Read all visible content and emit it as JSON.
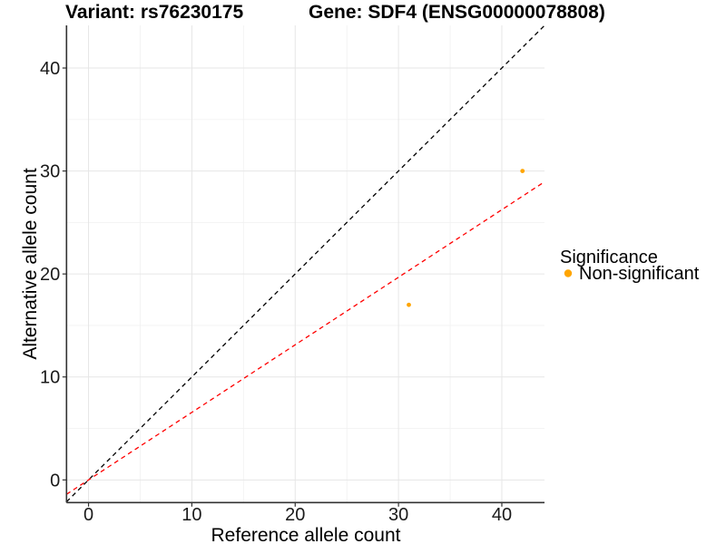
{
  "chart_data": {
    "type": "scatter",
    "titles": {
      "variant": "Variant: rs76230175",
      "gene": "Gene: SDF4 (ENSG00000078808)"
    },
    "xlabel": "Reference allele count",
    "ylabel": "Alternative allele count",
    "xlim": [
      -2.13,
      44.13
    ],
    "ylim": [
      -2.2,
      44.14
    ],
    "x_ticks": [
      0,
      10,
      20,
      30,
      40
    ],
    "y_ticks": [
      0,
      10,
      20,
      30,
      40
    ],
    "x_minor_ticks": [
      5,
      15,
      25,
      35
    ],
    "y_minor_ticks": [
      5,
      15,
      25,
      35
    ],
    "grid": true,
    "points": [
      {
        "x": 31,
        "y": 17,
        "series": "Non-significant"
      },
      {
        "x": 42,
        "y": 30,
        "series": "Non-significant"
      }
    ],
    "reference_lines": [
      {
        "name": "identity-line",
        "slope": 1,
        "intercept": 0,
        "color": "#000000",
        "style": "dashed"
      },
      {
        "name": "fit-line",
        "slope": 0.656,
        "intercept": 0,
        "color": "#FF0000",
        "style": "dashed"
      }
    ],
    "legend": {
      "title": "Significance",
      "position": "right",
      "items": [
        {
          "label": "Non-significant",
          "color": "#FFA500"
        }
      ]
    },
    "colors": {
      "point": "#FFA500",
      "grid_major": "#E6E6E6",
      "grid_minor": "#F2F2F2",
      "axis": "#333333",
      "tick": "#333333"
    }
  }
}
